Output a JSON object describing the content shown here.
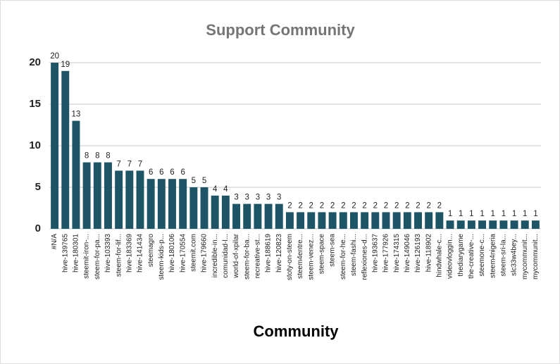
{
  "chart_data": {
    "type": "bar",
    "title": "Support Community",
    "x_label": "Community",
    "categories": [
      "#N/A",
      "hive-139765",
      "hive-180301",
      "steemit-iron-...",
      "steem-for-pa...",
      "hive-103393",
      "steem-for-lif...",
      "hive-183369",
      "hive-141434",
      "steemagro",
      "steem-kids-p...",
      "hive-180106",
      "hive-170554",
      "steemit.com",
      "hive-179660",
      "incredible-in...",
      "comunidad-l...",
      "world-of-xpilar",
      "steem-for-ba...",
      "recreative-st...",
      "hive-188619",
      "hive-120823",
      "stoty-on-steem",
      "steem4entre...",
      "steem-venez...",
      "steem-space",
      "steem-sea",
      "steem-for-he...",
      "steem-fashi...",
      "reflexiones-d...",
      "hive-193637",
      "hive-177926",
      "hive-174315",
      "hive-149046",
      "hive-126193",
      "hive-118902",
      "hindwhale-c...",
      "videovloggin...",
      "thediarygame",
      "the-creative-...",
      "steemone-c...",
      "steem4nigeria",
      "steem-sri-la...",
      "slc33w4bey...",
      "mycommunit...",
      "mycommunit..."
    ],
    "values": [
      20,
      19,
      13,
      8,
      8,
      8,
      7,
      7,
      7,
      6,
      6,
      6,
      6,
      5,
      5,
      4,
      4,
      3,
      3,
      3,
      3,
      3,
      2,
      2,
      2,
      2,
      2,
      2,
      2,
      2,
      2,
      2,
      2,
      2,
      2,
      2,
      2,
      1,
      1,
      1,
      1,
      1,
      1,
      1,
      1,
      1
    ],
    "color": "#1d5566",
    "ylim": [
      0,
      20
    ],
    "yticks": [
      0,
      5,
      10,
      15,
      20
    ],
    "grid": true
  }
}
